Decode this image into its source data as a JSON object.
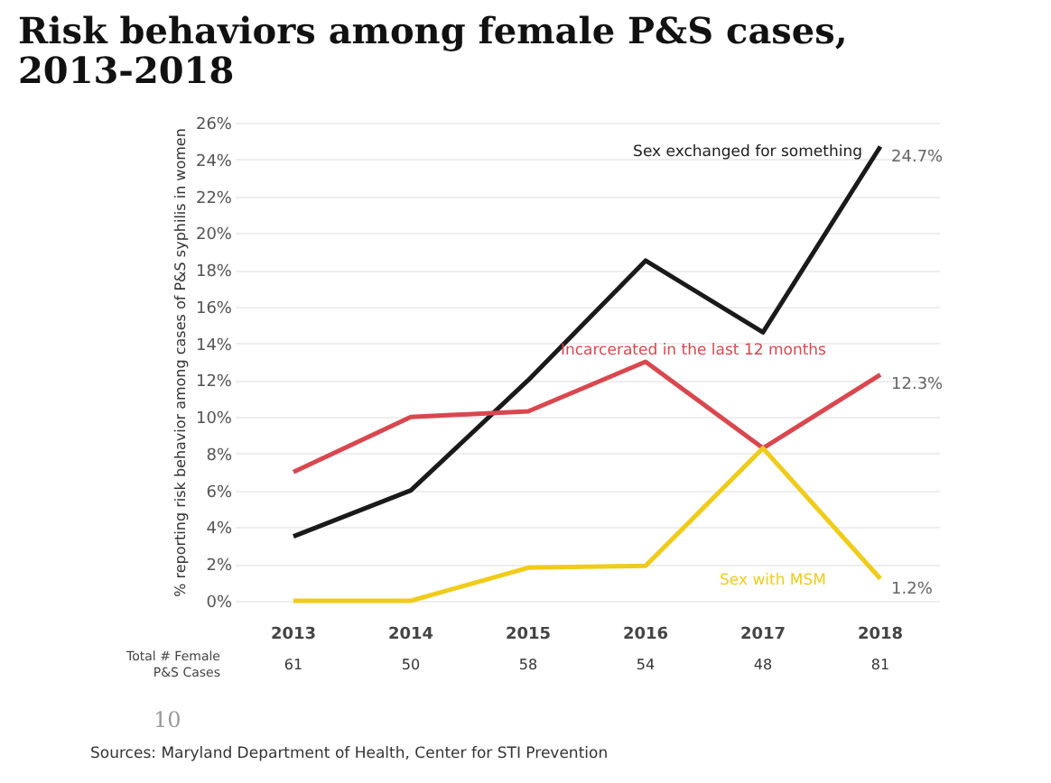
{
  "chart_data": {
    "type": "line",
    "title": "Risk behaviors among female P&S cases, 2013-2018",
    "ylabel": "% reporting risk behavior among cases of P&S syphilis in women",
    "categories": [
      "2013",
      "2014",
      "2015",
      "2016",
      "2017",
      "2018"
    ],
    "series": [
      {
        "name": "Sex exchanged for something",
        "color": "#1a1a1a",
        "values": [
          3.5,
          6.0,
          12.0,
          18.5,
          14.6,
          24.7
        ],
        "value_labels": [
          null,
          null,
          null,
          null,
          null,
          "24.7%"
        ]
      },
      {
        "name": "Incarcerated in the last 12 months",
        "color": "#d9474f",
        "values": [
          7.0,
          10.0,
          10.3,
          13.0,
          8.3,
          12.3
        ],
        "value_labels": [
          null,
          null,
          null,
          null,
          null,
          "12.3%"
        ]
      },
      {
        "name": "Sex with MSM",
        "color": "#f0cc1a",
        "values": [
          0.0,
          0.0,
          1.8,
          1.9,
          8.3,
          1.2
        ],
        "value_labels": [
          null,
          null,
          null,
          null,
          null,
          "1.2%"
        ]
      }
    ],
    "ylim": [
      0,
      26
    ],
    "yticks": [
      {
        "value": 0,
        "label": "0%"
      },
      {
        "value": 2,
        "label": "2%"
      },
      {
        "value": 4,
        "label": "4%"
      },
      {
        "value": 6,
        "label": "6%"
      },
      {
        "value": 8,
        "label": "8%"
      },
      {
        "value": 10,
        "label": "10%"
      },
      {
        "value": 12,
        "label": "12%"
      },
      {
        "value": 14,
        "label": "14%"
      },
      {
        "value": 16,
        "label": "16%"
      },
      {
        "value": 18,
        "label": "18%"
      },
      {
        "value": 20,
        "label": "20%"
      },
      {
        "value": 22,
        "label": "22%"
      },
      {
        "value": 24,
        "label": "24%"
      },
      {
        "value": 26,
        "label": "26%"
      }
    ],
    "grid": "y",
    "legend": false,
    "marker": "none",
    "line_style": "solid",
    "annotations": [
      "Total # Female P&S Cases",
      "61",
      "50",
      "58",
      "54",
      "48",
      "81",
      "10",
      "Sources: Maryland Department of Health, Center for STI Prevention"
    ]
  }
}
